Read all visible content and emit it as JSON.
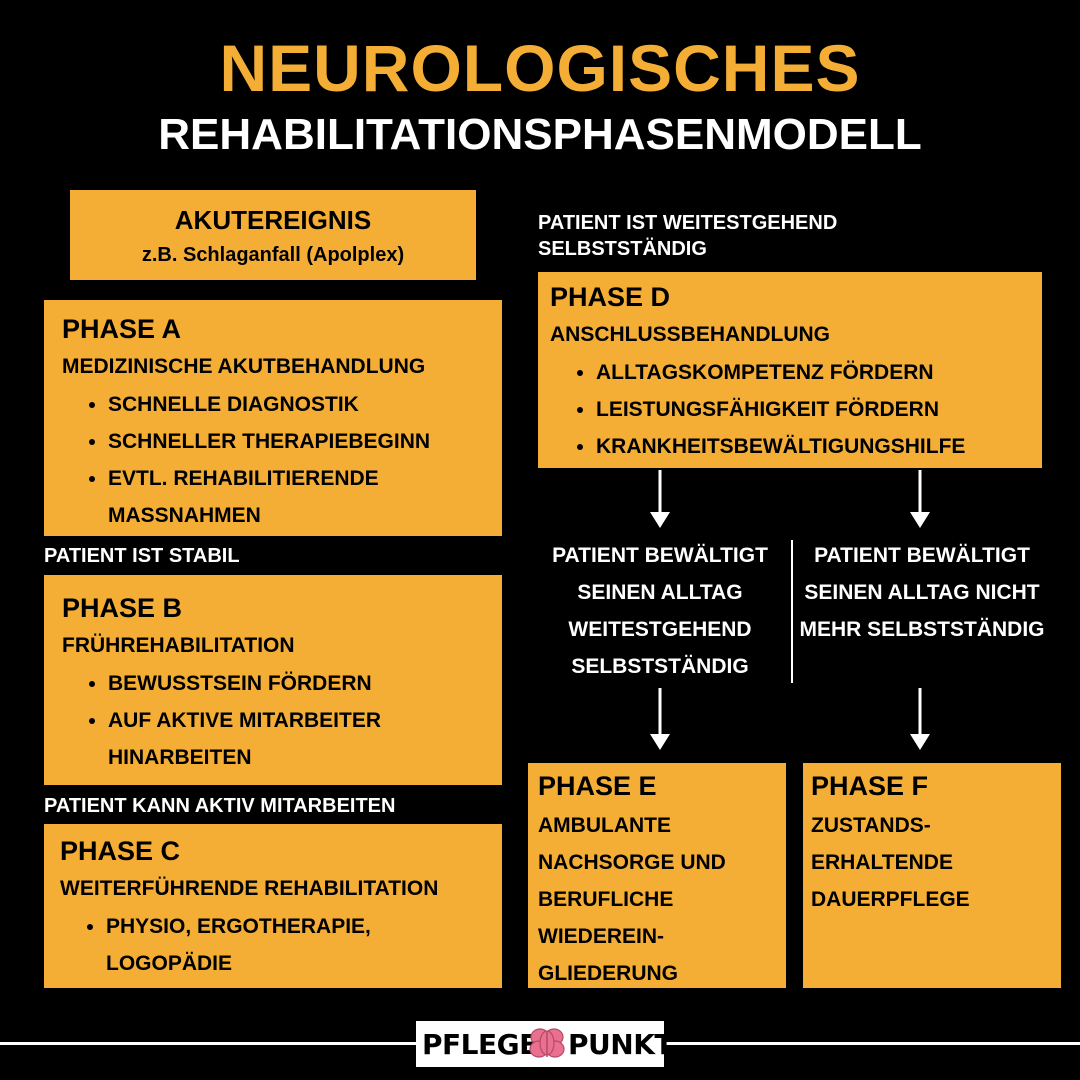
{
  "header": {
    "title_line1": "NEUROLOGISCHES",
    "title_line2": "REHABILITATIONSPHASENMODELL"
  },
  "akut": {
    "title": "AKUTEREIGNIS",
    "subtitle": "z.B. Schlaganfall (Apolplex)"
  },
  "phase_a": {
    "title": "PHASE A",
    "subtitle": "MEDIZINISCHE AKUTBEHANDLUNG",
    "items": [
      "SCHNELLE DIAGNOSTIK",
      "SCHNELLER THERAPIEBEGINN",
      "EVTL. REHABILITIERENDE MASSNAHMEN"
    ]
  },
  "label_stable": "PATIENT IST STABIL",
  "phase_b": {
    "title": "PHASE B",
    "subtitle": "FRÜHREHABILITATION",
    "items": [
      "BEWUSSTSEIN FÖRDERN",
      "AUF AKTIVE MITARBEITER HINARBEITEN"
    ]
  },
  "label_active": "PATIENT KANN AKTIV MITARBEITEN",
  "phase_c": {
    "title": "PHASE C",
    "subtitle": "WEITERFÜHRENDE REHABILITATION",
    "items": [
      "PHYSIO, ERGOTHERAPIE, LOGOPÄDIE"
    ]
  },
  "label_independent": "PATIENT IST WEITESTGEHEND SELBSTSTÄNDIG",
  "phase_d": {
    "title": "PHASE D",
    "subtitle": "ANSCHLUSSBEHANDLUNG",
    "items": [
      "ALLTAGSKOMPETENZ FÖRDERN",
      "LEISTUNGSFÄHIGKEIT FÖRDERN",
      "KRANKHEITSBEWÄLTIGUNGSHILFE"
    ]
  },
  "branch_left": "PATIENT BEWÄLTIGT SEINEN ALLTAG WEITESTGEHEND SELBSTSTÄNDIG",
  "branch_right": "PATIENT BEWÄLTIGT SEINEN ALLTAG NICHT MEHR SELBSTSTÄNDIG",
  "phase_e": {
    "title": "PHASE E",
    "body": "AMBULANTE NACHSORGE UND BERUFLICHE WIEDEREIN- GLIEDERUNG"
  },
  "phase_f": {
    "title": "PHASE F",
    "body": "ZUSTANDS- ERHALTENDE DAUERPFLEGE"
  },
  "logo": {
    "left": "PFLEGE",
    "right": "PUNKT",
    "icon": "brain-icon"
  },
  "colors": {
    "accent": "#f4ae36",
    "background": "#000000",
    "text_light": "#ffffff"
  }
}
